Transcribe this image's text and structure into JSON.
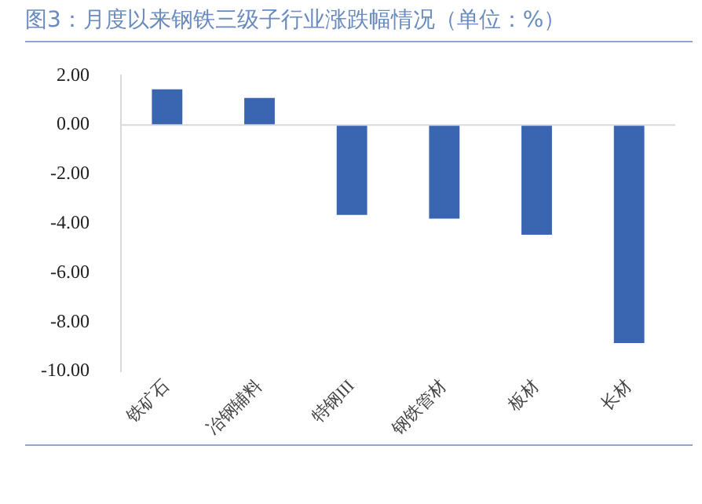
{
  "chart_data": {
    "type": "bar",
    "title": "图3：月度以来钢铁三级子行业涨跌幅情况（单位：%）",
    "categories": [
      "铁矿石",
      "冶钢辅料",
      "特钢III",
      "钢铁管材",
      "板材",
      "长材"
    ],
    "values": [
      1.45,
      1.1,
      -3.65,
      -3.8,
      -4.45,
      -8.85
    ],
    "color": "#3a65b0",
    "ylim": [
      -10,
      2
    ],
    "yticks": [
      {
        "value": 2,
        "label": "2.00"
      },
      {
        "value": 0,
        "label": "0.00"
      },
      {
        "value": -2,
        "label": "-2.00"
      },
      {
        "value": -4,
        "label": "-4.00"
      },
      {
        "value": -6,
        "label": "-6.00"
      },
      {
        "value": -8,
        "label": "-8.00"
      },
      {
        "value": -10,
        "label": "-10.00"
      }
    ],
    "grid": false,
    "ref_lines": [
      {
        "axis": "y",
        "value": 0,
        "color": "#d9d9d9"
      }
    ],
    "legend": false
  }
}
